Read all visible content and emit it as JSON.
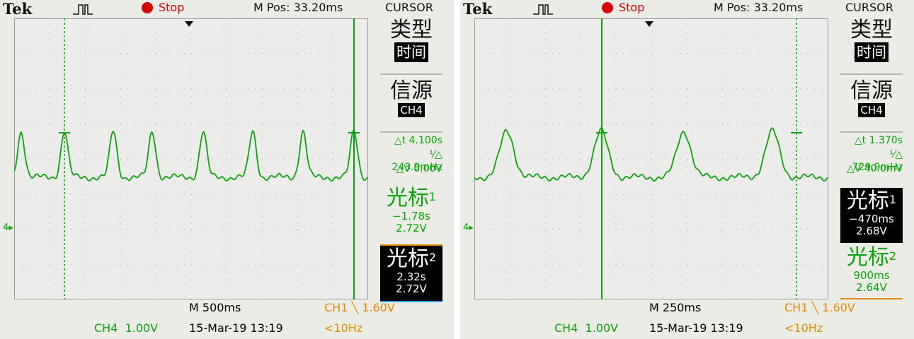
{
  "screens": [
    {
      "brand": "Tek",
      "run_state": "Stop",
      "m_pos": "M Pos: 33.20ms",
      "menu_title": "CURSOR",
      "type_label": "类型",
      "type_value": "时间",
      "source_label": "信源",
      "source_value": "CH4",
      "delta_t": "△t 4.100s",
      "freq": "243.9mHz",
      "delta_v": "△V 0.00V",
      "cursor1": {
        "label": "光标",
        "index": "1",
        "time": "−1.78s",
        "volt": "2.72V",
        "active": false
      },
      "cursor2": {
        "label": "光标",
        "index": "2",
        "time": "2.32s",
        "volt": "2.72V",
        "active": true
      },
      "timebase": "M 500ms",
      "trigger": "CH1 ╲ 1.60V",
      "channel": "CH4  1.00V",
      "datetime": "15-Mar-19 13:19",
      "freq_status": "<10Hz",
      "ch_marker": "4▸"
    },
    {
      "brand": "Tek",
      "run_state": "Stop",
      "m_pos": "M Pos: 33.20ms",
      "menu_title": "CURSOR",
      "type_label": "类型",
      "type_value": "时间",
      "source_label": "信源",
      "source_value": "CH4",
      "delta_t": "△t 1.370s",
      "freq": "729.9mHz",
      "delta_v": "△V 40.0mV",
      "cursor1": {
        "label": "光标",
        "index": "1",
        "time": "−470ms",
        "volt": "2.68V",
        "active": true
      },
      "cursor2": {
        "label": "光标",
        "index": "2",
        "time": "900ms",
        "volt": "2.64V",
        "active": false
      },
      "timebase": "M 250ms",
      "trigger": "CH1 ╲ 1.60V",
      "channel": "CH4  1.00V",
      "datetime": "15-Mar-19 13:19",
      "freq_status": "<10Hz",
      "ch_marker": "4▸"
    }
  ],
  "colors": {
    "trace": "#0aa40a",
    "stop": "#d40000",
    "trigger": "#e08a00",
    "bezel": "#ecece6"
  }
}
